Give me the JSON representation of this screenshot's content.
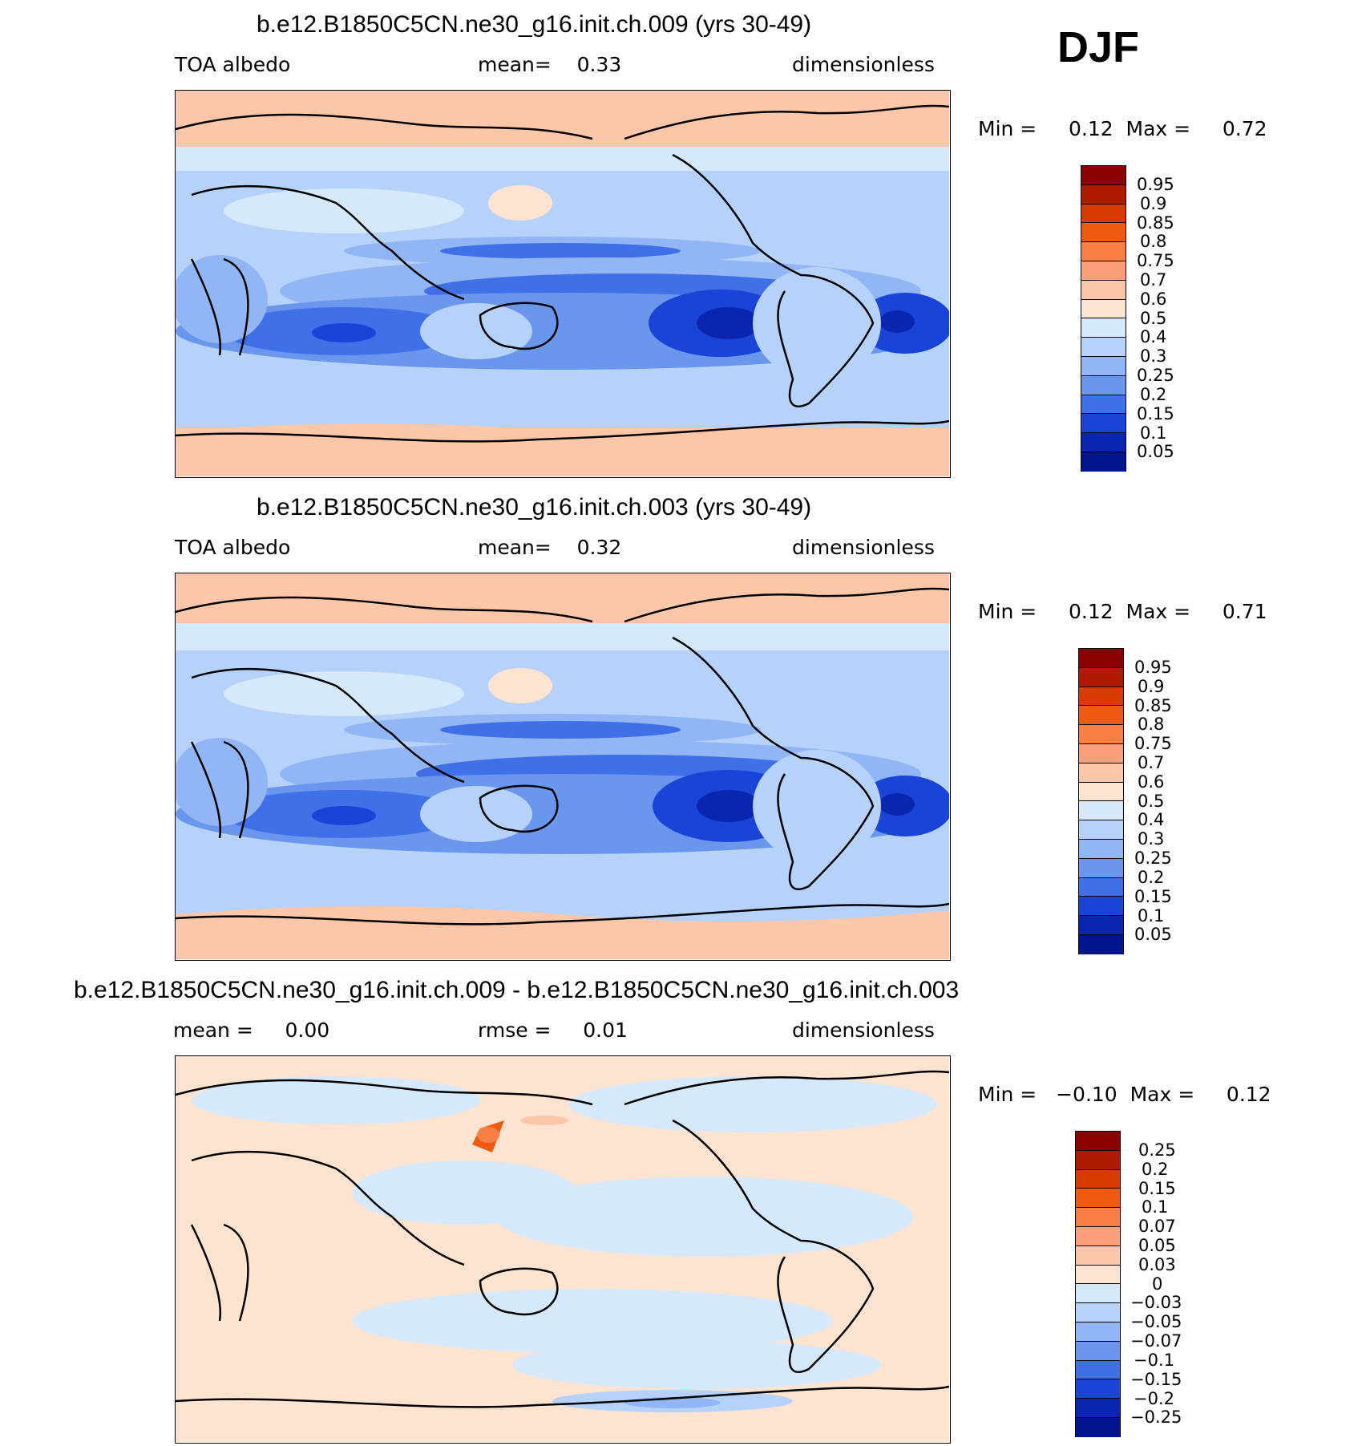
{
  "header": {
    "season": "DJF"
  },
  "panels": [
    {
      "title": "b.e12.B1850C5CN.ne30_g16.init.ch.009 (yrs 30-49)",
      "left_label": "TOA albedo",
      "mid_label": "mean=    0.33",
      "right_label": "dimensionless",
      "minmax": "Min =     0.12  Max =     0.72"
    },
    {
      "title": "b.e12.B1850C5CN.ne30_g16.init.ch.003 (yrs 30-49)",
      "left_label": "TOA albedo",
      "mid_label": "mean=    0.32",
      "right_label": "dimensionless",
      "minmax": "Min =     0.12  Max =     0.71"
    },
    {
      "title": "b.e12.B1850C5CN.ne30_g16.init.ch.009 - b.e12.B1850C5CN.ne30_g16.init.ch.003",
      "left_label": "mean =     0.00",
      "mid_label": "rmse =     0.01",
      "right_label": "dimensionless",
      "minmax": "Min =   −0.10  Max =     0.12"
    }
  ],
  "chart_data": [
    {
      "type": "heatmap",
      "title": "b.e12.B1850C5CN.ne30_g16.init.ch.009 (yrs 30-49)",
      "variable": "TOA albedo",
      "units": "dimensionless",
      "mean": 0.33,
      "min": 0.12,
      "max": 0.72,
      "levels": [
        "0.95",
        "0.9",
        "0.85",
        "0.8",
        "0.75",
        "0.7",
        "0.6",
        "0.5",
        "0.4",
        "0.3",
        "0.25",
        "0.2",
        "0.15",
        "0.1",
        "0.05"
      ],
      "colors": [
        "#8b0000",
        "#b01a00",
        "#d93a00",
        "#f05a10",
        "#fa7f45",
        "#fca07a",
        "#fcc6a8",
        "#fde3d0",
        "#d6e8fb",
        "#b6d2fb",
        "#92b6f5",
        "#6a96ee",
        "#3f70e8",
        "#1a44d8",
        "#0a26b0",
        "#001490"
      ]
    },
    {
      "type": "heatmap",
      "title": "b.e12.B1850C5CN.ne30_g16.init.ch.003 (yrs 30-49)",
      "variable": "TOA albedo",
      "units": "dimensionless",
      "mean": 0.32,
      "min": 0.12,
      "max": 0.71,
      "levels": [
        "0.95",
        "0.9",
        "0.85",
        "0.8",
        "0.75",
        "0.7",
        "0.6",
        "0.5",
        "0.4",
        "0.3",
        "0.25",
        "0.2",
        "0.15",
        "0.1",
        "0.05"
      ],
      "colors": [
        "#8b0000",
        "#b01a00",
        "#d93a00",
        "#f05a10",
        "#fa7f45",
        "#fca07a",
        "#fcc6a8",
        "#fde3d0",
        "#d6e8fb",
        "#b6d2fb",
        "#92b6f5",
        "#6a96ee",
        "#3f70e8",
        "#1a44d8",
        "#0a26b0",
        "#001490"
      ]
    },
    {
      "type": "heatmap",
      "title": "b.e12.B1850C5CN.ne30_g16.init.ch.009 - b.e12.B1850C5CN.ne30_g16.init.ch.003",
      "units": "dimensionless",
      "mean": 0.0,
      "rmse": 0.01,
      "min": -0.1,
      "max": 0.12,
      "levels": [
        "0.25",
        "0.2",
        "0.15",
        "0.1",
        "0.07",
        "0.05",
        "0.03",
        "0",
        "−0.03",
        "−0.05",
        "−0.07",
        "−0.1",
        "−0.15",
        "−0.2",
        "−0.25"
      ],
      "colors": [
        "#8b0000",
        "#b01a00",
        "#d93a00",
        "#f05a10",
        "#fa7f45",
        "#fca07a",
        "#fcc6a8",
        "#fde3d0",
        "#d6e8fb",
        "#b6d2fb",
        "#92b6f5",
        "#6a96ee",
        "#3f70e8",
        "#1a44d8",
        "#0a26b0",
        "#001490"
      ]
    }
  ]
}
